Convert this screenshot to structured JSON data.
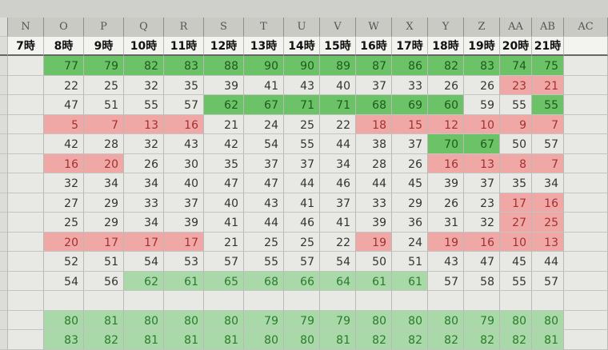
{
  "columns": [
    "N",
    "O",
    "P",
    "Q",
    "R",
    "S",
    "T",
    "U",
    "V",
    "W",
    "X",
    "Y",
    "Z",
    "AA",
    "AB",
    "AC"
  ],
  "hour_labels": [
    "7時",
    "8時",
    "9時",
    "10時",
    "11時",
    "12時",
    "13時",
    "14時",
    "15時",
    "16時",
    "17時",
    "18時",
    "19時",
    "20時",
    "21時",
    ""
  ],
  "colors": {
    "high": "#6cc266",
    "high_light": "#a9d9a9",
    "low": "#f0a8a6"
  },
  "rows": [
    {
      "values": [
        77,
        79,
        82,
        83,
        88,
        90,
        90,
        89,
        87,
        86,
        82,
        83,
        74,
        75
      ],
      "fill": "gggggggggggggg"
    },
    {
      "values": [
        22,
        25,
        32,
        35,
        39,
        41,
        43,
        40,
        37,
        33,
        26,
        26,
        23,
        21
      ],
      "fill": "............rr"
    },
    {
      "values": [
        47,
        51,
        55,
        57,
        62,
        67,
        71,
        71,
        68,
        69,
        60,
        59,
        55,
        55
      ],
      "fill": "....ggggggg..g"
    },
    {
      "values": [
        5,
        7,
        13,
        16,
        21,
        24,
        25,
        22,
        18,
        15,
        12,
        10,
        9,
        7
      ],
      "fill": "rrrr....rrrrrr"
    },
    {
      "values": [
        42,
        28,
        32,
        43,
        42,
        54,
        55,
        44,
        38,
        37,
        70,
        67,
        50,
        57
      ],
      "fill": "..........gg.."
    },
    {
      "values": [
        16,
        20,
        26,
        30,
        35,
        37,
        37,
        34,
        28,
        26,
        16,
        13,
        8,
        7
      ],
      "fill": "rr........rrrr"
    },
    {
      "values": [
        32,
        34,
        34,
        40,
        47,
        47,
        44,
        46,
        44,
        45,
        39,
        37,
        35,
        34
      ],
      "fill": ".............."
    },
    {
      "values": [
        27,
        29,
        33,
        37,
        40,
        43,
        41,
        37,
        33,
        29,
        26,
        23,
        17,
        16
      ],
      "fill": "............rr"
    },
    {
      "values": [
        25,
        29,
        34,
        39,
        41,
        44,
        46,
        41,
        39,
        36,
        31,
        32,
        27,
        25
      ],
      "fill": "............rr"
    },
    {
      "values": [
        20,
        17,
        17,
        17,
        21,
        25,
        25,
        22,
        19,
        24,
        19,
        16,
        10,
        13
      ],
      "fill": "rrrr....r.rrrr"
    },
    {
      "values": [
        52,
        51,
        54,
        53,
        57,
        55,
        57,
        54,
        50,
        51,
        43,
        47,
        45,
        44
      ],
      "fill": ".............."
    },
    {
      "values": [
        54,
        56,
        62,
        61,
        65,
        68,
        66,
        64,
        61,
        61,
        57,
        58,
        55,
        57
      ],
      "fill": "..LLLLLLLL...."
    },
    {
      "values": [],
      "fill": ""
    },
    {
      "values": [
        80,
        81,
        80,
        80,
        80,
        79,
        79,
        79,
        80,
        80,
        80,
        79,
        80,
        80
      ],
      "fill": "LLLLLLLLLLLLLL"
    },
    {
      "values": [
        83,
        82,
        81,
        81,
        81,
        80,
        80,
        81,
        82,
        82,
        82,
        82,
        82,
        81
      ],
      "fill": "LLLLLLLLLLLLLL"
    }
  ]
}
